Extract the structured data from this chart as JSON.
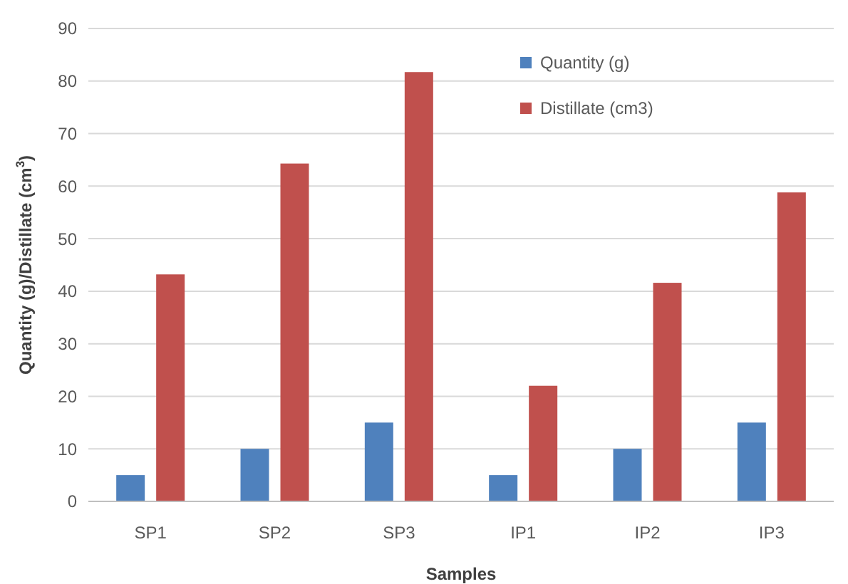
{
  "chart_data": {
    "type": "bar",
    "xlabel": "Samples",
    "ylabel": "Quantity (g)/Distillate (cm$^{3}$)",
    "categories": [
      "SP1",
      "SP2",
      "SP3",
      "IP1",
      "IP2",
      "IP3"
    ],
    "series": [
      {
        "name": "Quantity (g)",
        "color": "#4f81bd",
        "values": [
          5,
          10,
          15,
          5,
          10,
          15
        ]
      },
      {
        "name": "Distillate (cm3)",
        "color": "#c0504d",
        "values": [
          43.2,
          64.3,
          81.7,
          22,
          41.6,
          58.8
        ]
      }
    ],
    "ylim": [
      0,
      90
    ],
    "yticks": [
      0,
      10,
      20,
      30,
      40,
      50,
      60,
      70,
      80,
      90
    ],
    "grid": "y",
    "legend": "top right"
  }
}
